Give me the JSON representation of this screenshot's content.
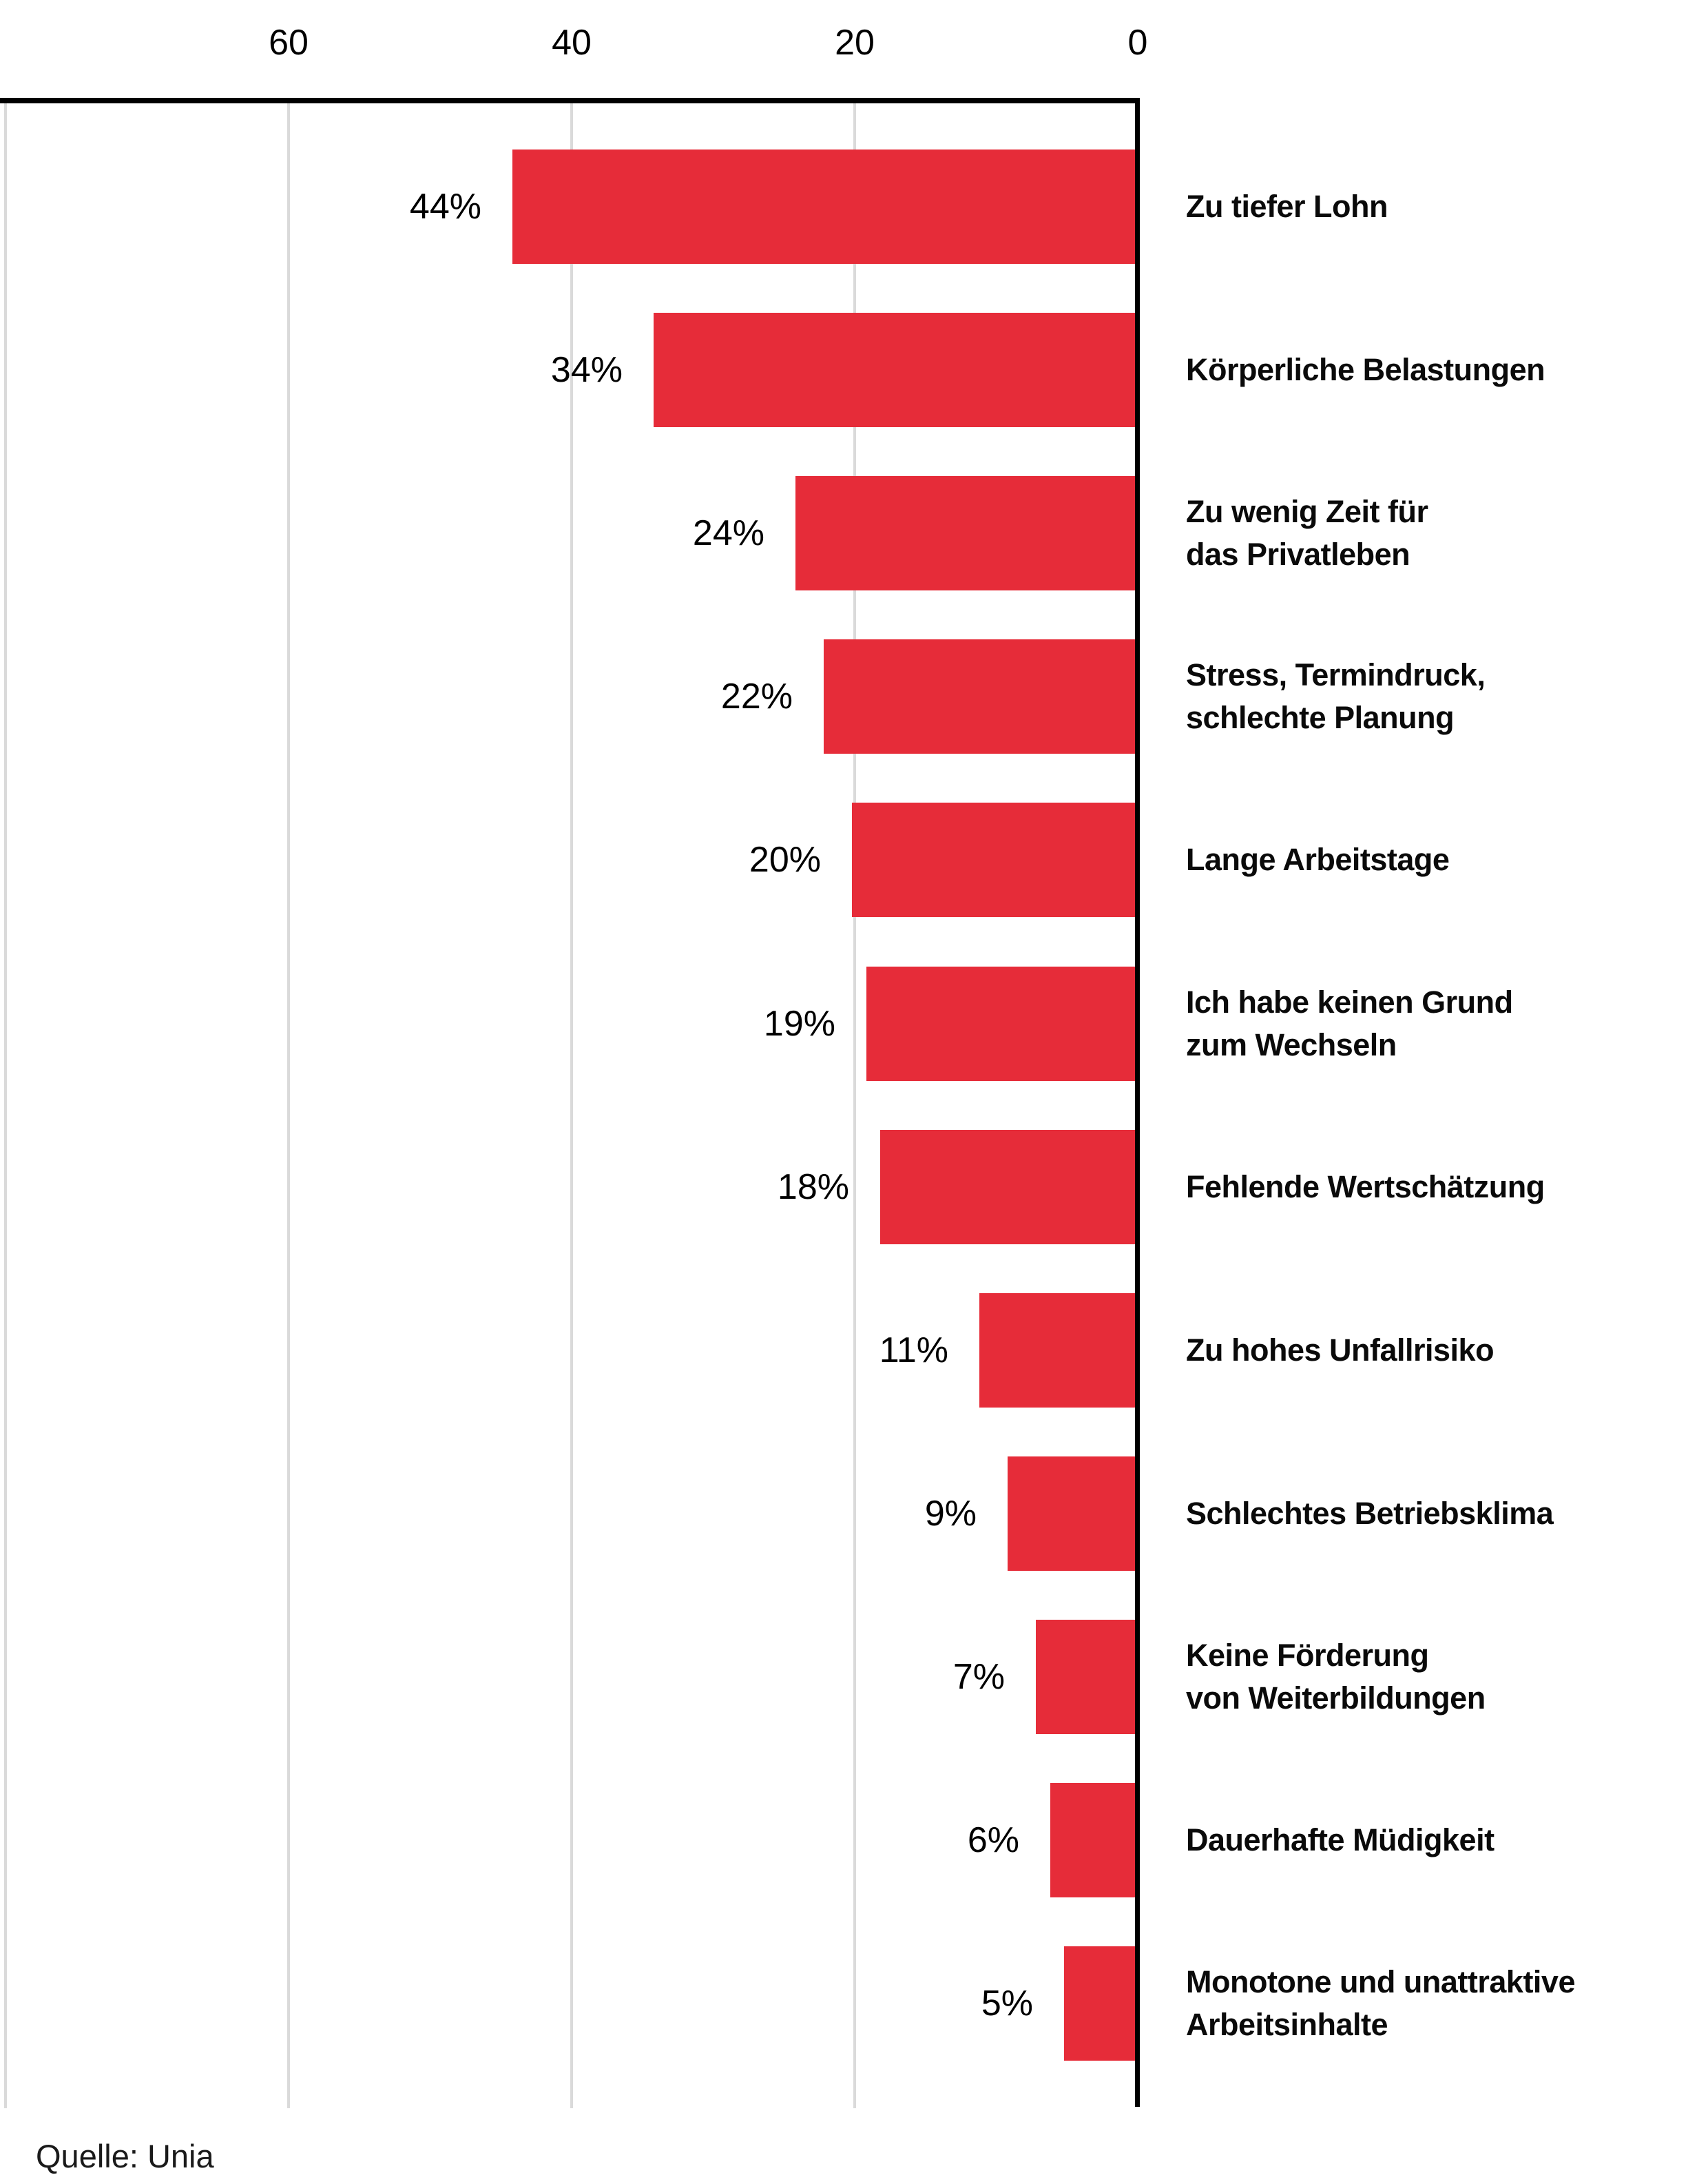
{
  "chart_data": {
    "type": "bar",
    "orientation": "horizontal",
    "title": "",
    "xlabel": "",
    "ylabel": "",
    "axis": {
      "position": "top",
      "reversed": true,
      "min": 0,
      "max": 80,
      "tick_values": [
        60,
        40,
        20,
        0
      ],
      "tick_labels": [
        "60",
        "40",
        "20",
        "0"
      ],
      "gridline_values": [
        80,
        60,
        40,
        20
      ],
      "grid": true
    },
    "categories": [
      "Zu tiefer Lohn",
      "Körperliche Belastungen",
      "Zu wenig Zeit für das Privatleben",
      "Stress, Termindruck, schlechte Planung",
      "Lange Arbeitstage",
      "Ich habe keinen Grund zum Wechseln",
      "Fehlende Wertschätzung",
      "Zu hohes Unfallrisiko",
      "Schlechtes Betriebsklima",
      "Keine Förderung von Weiterbildungen",
      "Dauerhafte Müdigkeit",
      "Monotone und unattraktive Arbeitsinhalte"
    ],
    "category_lines": [
      [
        "Zu tiefer Lohn"
      ],
      [
        "Körperliche Belastungen"
      ],
      [
        "Zu wenig Zeit für",
        "das Privatleben"
      ],
      [
        "Stress, Termindruck,",
        "schlechte Planung"
      ],
      [
        "Lange Arbeitstage"
      ],
      [
        "Ich habe keinen Grund",
        "zum Wechseln"
      ],
      [
        "Fehlende Wertschätzung"
      ],
      [
        "Zu hohes Unfallrisiko"
      ],
      [
        "Schlechtes Betriebsklima"
      ],
      [
        "Keine Förderung",
        "von Weiterbildungen"
      ],
      [
        "Dauerhafte Müdigkeit"
      ],
      [
        "Monotone und unattraktive",
        "Arbeitsinhalte"
      ]
    ],
    "values": [
      44,
      34,
      24,
      22,
      20,
      19,
      18,
      11,
      9,
      7,
      6,
      5
    ],
    "value_labels": [
      "44%",
      "34%",
      "24%",
      "22%",
      "20%",
      "19%",
      "18%",
      "11%",
      "9%",
      "7%",
      "6%",
      "5%"
    ],
    "legend": null,
    "colors": {
      "bar": "#e62c39",
      "grid": "#dadada",
      "axis": "#000000",
      "text": "#0a0a0a"
    },
    "source": "Quelle: Unia"
  }
}
